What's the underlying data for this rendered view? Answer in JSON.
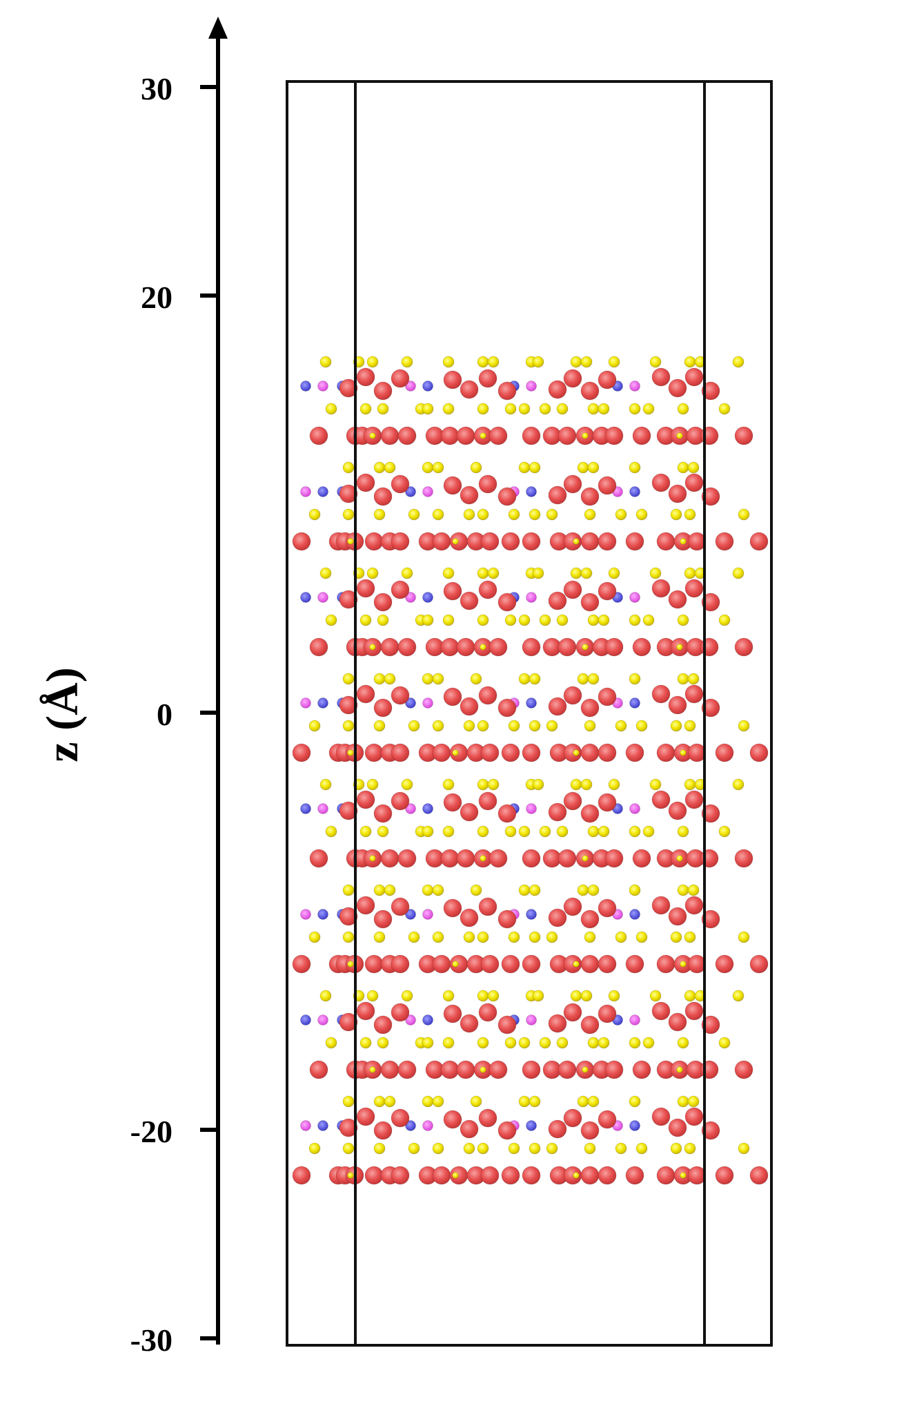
{
  "axis": {
    "label": "z (Å)",
    "ticks": [
      {
        "value": 30,
        "label": "30"
      },
      {
        "value": 20,
        "label": "20"
      },
      {
        "value": 0,
        "label": "0"
      },
      {
        "value": -20,
        "label": "-20"
      },
      {
        "value": -30,
        "label": "-30"
      }
    ]
  },
  "colors": {
    "axis": "#000000",
    "cell": "#111111",
    "red_atom": "#e85050",
    "yellow_atom": "#f2e600",
    "blue_atom": "#4848e0",
    "magenta_atom": "#ee50ee"
  }
}
